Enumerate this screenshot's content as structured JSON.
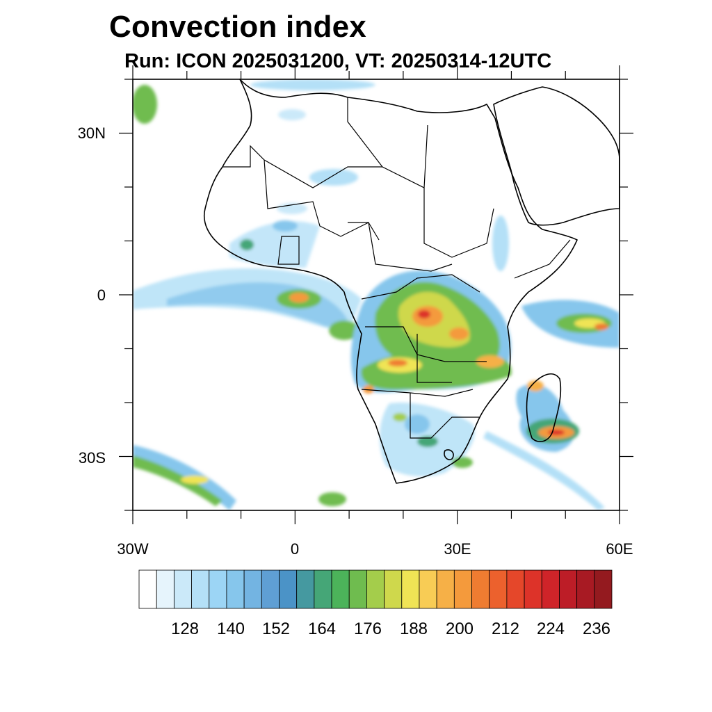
{
  "title": "Convection index",
  "subtitle": "Run: ICON 2025031200,  VT: 20250314-12UTC",
  "map": {
    "lon_range": [
      -30,
      60
    ],
    "lat_range": [
      -40,
      40
    ],
    "x_ticks": [
      {
        "lon": -30,
        "label": "30W"
      },
      {
        "lon": 0,
        "label": "0"
      },
      {
        "lon": 30,
        "label": "30E"
      },
      {
        "lon": 60,
        "label": "60E"
      }
    ],
    "y_ticks": [
      {
        "lat": 30,
        "label": "30N"
      },
      {
        "lat": 0,
        "label": "0"
      },
      {
        "lat": -30,
        "label": "30S"
      }
    ]
  },
  "colorbar": {
    "labels": [
      "128",
      "140",
      "152",
      "164",
      "176",
      "188",
      "200",
      "212",
      "224",
      "236"
    ],
    "colors": [
      "#ffffff",
      "#e6f4fc",
      "#cbe9f9",
      "#b4e0f7",
      "#9cd5f5",
      "#86c6ec",
      "#73b4e2",
      "#5f9fd4",
      "#4b93c7",
      "#4599a0",
      "#45a677",
      "#4cb35a",
      "#6fbc4f",
      "#a4cd4b",
      "#cfd84c",
      "#f0e455",
      "#f8cc55",
      "#f6b047",
      "#f49a3c",
      "#ef7c31",
      "#ec612d",
      "#e5472a",
      "#dd3329",
      "#cf2429",
      "#bd1d27",
      "#a81a23",
      "#941a1f"
    ]
  },
  "colors": {
    "coast": "#000000",
    "background": "#ffffff"
  }
}
